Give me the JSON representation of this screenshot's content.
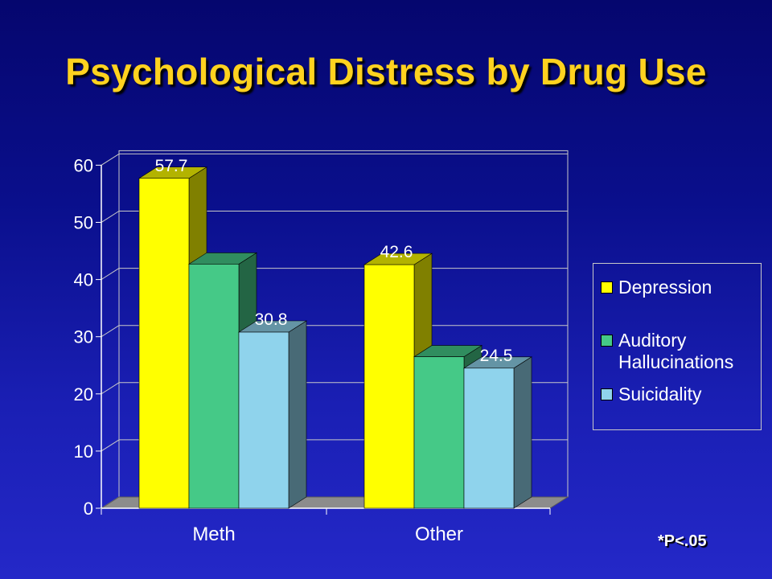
{
  "slide": {
    "title": "Psychological Distress by Drug Use",
    "footnote": "*P<.05"
  },
  "colors": {
    "Depression": "#ffff00",
    "Auditory Hallucinations": "#45c987",
    "Suicidality": "#8fd3ec"
  },
  "chart_data": {
    "type": "bar",
    "categories": [
      "Meth",
      "Other"
    ],
    "series": [
      {
        "name": "Depression",
        "values": [
          57.7,
          42.6
        ],
        "labels": [
          "57.7",
          "42.6"
        ]
      },
      {
        "name": "Auditory Hallucinations",
        "values": [
          42.7,
          26.5
        ],
        "labels": [
          "",
          ""
        ]
      },
      {
        "name": "Suicidality",
        "values": [
          30.8,
          24.5
        ],
        "labels": [
          "30.8",
          "24.5"
        ]
      }
    ],
    "y_ticks": [
      "0",
      "10",
      "20",
      "30",
      "40",
      "50",
      "60"
    ],
    "ylim": [
      0,
      60
    ],
    "legend_entries": [
      "Depression",
      "Auditory\nHallucinations",
      "Suicidality"
    ],
    "legend_position": "right",
    "grid": true,
    "style": "3d"
  }
}
